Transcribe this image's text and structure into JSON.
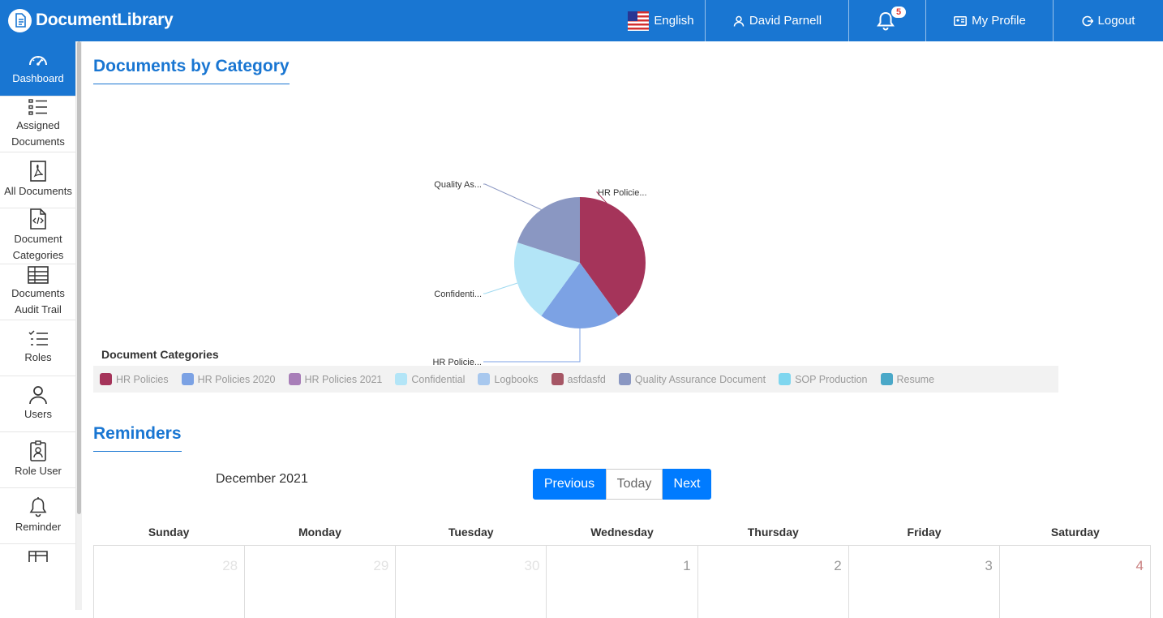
{
  "header": {
    "brand": "DocumentLibrary",
    "language": "English",
    "user": "David Parnell",
    "notification_count": "5",
    "profile": "My Profile",
    "logout": "Logout"
  },
  "sidebar": {
    "items": [
      {
        "label": "Dashboard",
        "icon": "dashboard-gauge-icon"
      },
      {
        "label": "Assigned Documents",
        "icon": "list-icon"
      },
      {
        "label": "All Documents",
        "icon": "pdf-file-icon"
      },
      {
        "label": "Document Categories",
        "icon": "code-file-icon"
      },
      {
        "label": "Documents Audit Trail",
        "icon": "table-icon"
      },
      {
        "label": "Roles",
        "icon": "checklist-icon"
      },
      {
        "label": "Users",
        "icon": "user-icon"
      },
      {
        "label": "Role User",
        "icon": "badge-icon"
      },
      {
        "label": "Reminder",
        "icon": "bell-icon"
      }
    ]
  },
  "category_section": {
    "title": "Documents by Category",
    "legend_title": "Document Categories"
  },
  "chart_data": {
    "type": "pie",
    "slices": [
      {
        "label": "HR Policie...",
        "value": 40,
        "color": "#a5345a"
      },
      {
        "label": "HR Policie...",
        "value": 20,
        "color": "#7ca2e4"
      },
      {
        "label": "Confidenti...",
        "value": 20,
        "color": "#b3e5f7"
      },
      {
        "label": "Quality As...",
        "value": 20,
        "color": "#8a97c2"
      }
    ],
    "legend": [
      {
        "name": "HR Policies",
        "color": "#a5345a"
      },
      {
        "name": "HR Policies 2020",
        "color": "#7ca2e4"
      },
      {
        "name": "HR Policies 2021",
        "color": "#a87eb8"
      },
      {
        "name": "Confidential",
        "color": "#b3e5f7"
      },
      {
        "name": "Logbooks",
        "color": "#a8c8ee"
      },
      {
        "name": "asfdasfd",
        "color": "#a65665"
      },
      {
        "name": "Quality Assurance Document",
        "color": "#8a97c2"
      },
      {
        "name": "SOP Production",
        "color": "#7fd6ef"
      },
      {
        "name": "Resume",
        "color": "#4aa8c8"
      }
    ]
  },
  "reminders": {
    "title": "Reminders",
    "month": "December 2021",
    "prev": "Previous",
    "today": "Today",
    "next": "Next",
    "weekdays": [
      "Sunday",
      "Monday",
      "Tuesday",
      "Wednesday",
      "Thursday",
      "Friday",
      "Saturday"
    ],
    "first_row": [
      "28",
      "29",
      "30",
      "1",
      "2",
      "3",
      "4"
    ]
  }
}
